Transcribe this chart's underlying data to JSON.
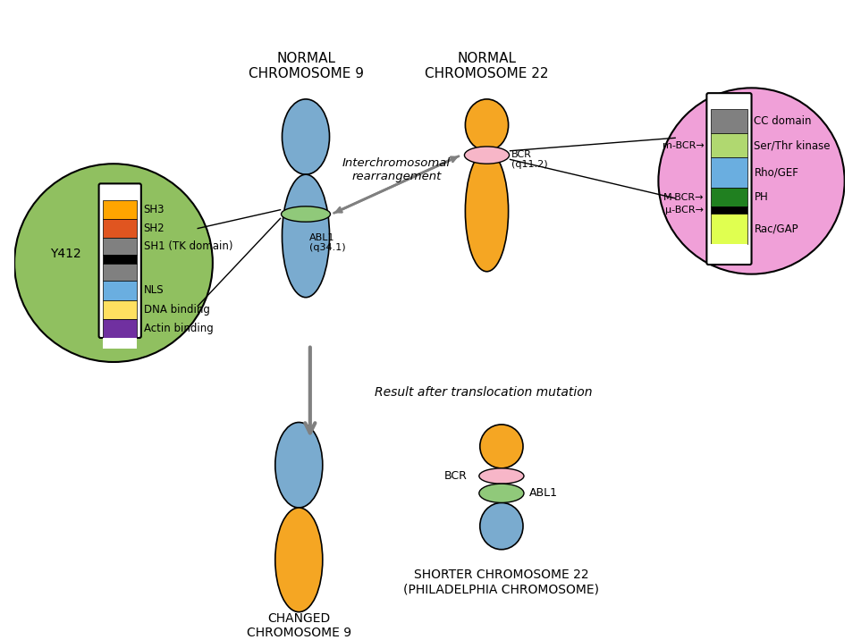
{
  "bg_color": "#ffffff",
  "title": "",
  "chr9_top_color": "#7aabcf",
  "chr9_bottom_color": "#f5a623",
  "chr22_top_color": "#f5a623",
  "chr22_bottom_color": "#f5a623",
  "abl1_color": "#90c97a",
  "bcr_color": "#f7b6c8",
  "green_circle_color": "#90c060",
  "pink_circle_color": "#f0a0d8",
  "abl1_legend": {
    "colors": [
      "#ffffff",
      "#ffa500",
      "#e05520",
      "#808080",
      "#000000",
      "#808080",
      "#6aaee0",
      "#ffe060",
      "#7030a0",
      "#ffffff"
    ],
    "labels": [
      "",
      "SH3",
      "SH2",
      "SH1 (TK domain)",
      "",
      "",
      "NLS",
      "DNA binding",
      "Actin binding",
      ""
    ]
  },
  "bcr_legend": {
    "colors": [
      "#808080",
      "#b0d870",
      "#6aaee0",
      "#208020",
      "#000000",
      "#e0ff50",
      "#ffffff"
    ],
    "labels": [
      "CC domain",
      "Ser/Thr kinase",
      "Rho/GEF",
      "PH",
      "",
      "Rac/GAP",
      ""
    ]
  },
  "normal_chr9_label": "NORMAL\nCHROMOSOME 9",
  "normal_chr22_label": "NORMAL\nCHROMOSOME 22",
  "interchromosomal_label": "Interchromosomal\nrearrangement",
  "result_label": "Result after translocation mutation",
  "changed_chr9_label": "CHANGED\nCHROMOSOME 9",
  "shorter_chr22_label": "SHORTER CHROMOSOME 22\n(PHILADELPHIA CHROMOSOME)",
  "abl1_label": "ABL1\n(q34.1)",
  "bcr_label": "BCR\n(q11.2)",
  "y412_label": "Y412",
  "bcr_arrow_labels": [
    "m-BCR→",
    "M-BCR→",
    "μ-BCR→"
  ]
}
